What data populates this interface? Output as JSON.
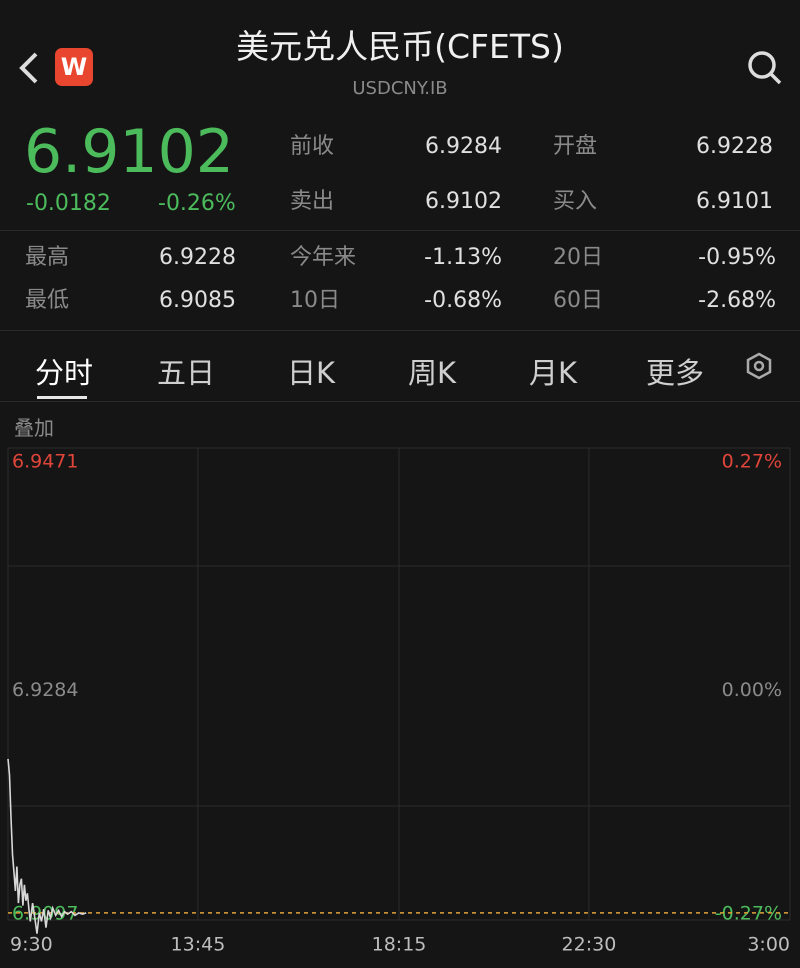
{
  "header": {
    "badge": "W",
    "title": "美元兑人民币(CFETS)",
    "code": "USDCNY.IB"
  },
  "quote": {
    "price": 6.9102,
    "change": -0.0182,
    "change_pct": "-0.26%"
  },
  "stats": [
    {
      "label": "前收",
      "value": 6.9284
    },
    {
      "label": "开盘",
      "value": 6.9228
    },
    {
      "label": "卖出",
      "value": 6.9102
    },
    {
      "label": "买入",
      "value": 6.9101
    }
  ],
  "ranges": [
    {
      "label": "最高",
      "value": 6.9228
    },
    {
      "label": "今年来",
      "value": "-1.13%"
    },
    {
      "label": "20日",
      "value": "-0.95%"
    },
    {
      "label": "最低",
      "value": 6.9085
    },
    {
      "label": "10日",
      "value": "-0.68%"
    },
    {
      "label": "60日",
      "value": "-2.68%"
    }
  ],
  "tabs": [
    "分时",
    "五日",
    "日K",
    "周K",
    "月K",
    "更多"
  ],
  "overlay": "叠加",
  "chart_data": {
    "type": "line",
    "x": [
      0,
      2,
      4,
      6,
      8,
      10,
      12,
      14,
      16,
      18,
      20,
      22,
      24,
      26,
      28,
      30,
      33,
      36,
      39,
      42,
      45,
      48,
      51,
      54,
      57,
      60,
      64,
      68,
      72,
      76,
      80,
      85,
      90,
      95,
      100,
      105
    ],
    "series": [
      {
        "color": "#d8d8d8",
        "values": [
          6.9228,
          6.9215,
          6.918,
          6.915,
          6.9135,
          6.912,
          6.914,
          6.911,
          6.9125,
          6.913,
          6.9108,
          6.9125,
          6.9112,
          6.9118,
          6.9105,
          6.9095,
          6.911,
          6.9098,
          6.9085,
          6.9102,
          6.9095,
          6.9105,
          6.909,
          6.9104,
          6.9098,
          6.9106,
          6.91,
          6.9104,
          6.9099,
          6.9103,
          6.9101,
          6.9103,
          6.91,
          6.9102,
          6.9101,
          6.9102
        ]
      }
    ],
    "xlim": [
      0,
      1050
    ],
    "xticks": [
      {
        "value": 0,
        "label": "9:30"
      },
      {
        "value": 255,
        "label": "13:45"
      },
      {
        "value": 525,
        "label": "18:15"
      },
      {
        "value": 780,
        "label": "22:30"
      },
      {
        "value": 1050,
        "label": "3:00"
      }
    ],
    "ylim": [
      6.9097,
      6.9471
    ],
    "yticks": [
      6.9471,
      6.9284,
      6.9097
    ],
    "pct_labels": [
      "0.27%",
      "0.00%",
      "-0.27%"
    ]
  }
}
